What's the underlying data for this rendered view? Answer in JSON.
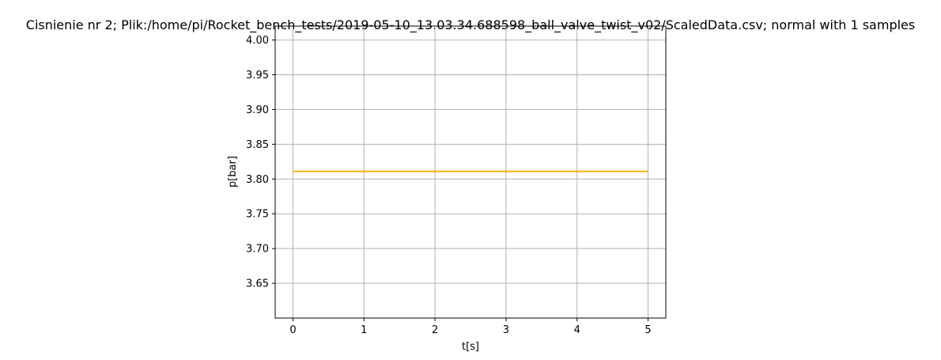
{
  "chart_data": {
    "type": "line",
    "title": "Cisnienie nr 2; Plik:/home/pi/Rocket_bench_tests/2019-05-10_13.03.34.688598_ball_valve_twist_v02/ScaledData.csv; normal with 1 samples",
    "xlabel": "t[s]",
    "ylabel": "p[bar]",
    "xlim": [
      -0.25,
      5.25
    ],
    "ylim": [
      3.6,
      4.02
    ],
    "x_ticks": [
      0,
      1,
      2,
      3,
      4,
      5
    ],
    "x_tick_labels": [
      "0",
      "1",
      "2",
      "3",
      "4",
      "5"
    ],
    "y_ticks": [
      3.65,
      3.7,
      3.75,
      3.8,
      3.85,
      3.9,
      3.95,
      4.0
    ],
    "y_tick_labels": [
      "3.65",
      "3.70",
      "3.75",
      "3.80",
      "3.85",
      "3.90",
      "3.95",
      "4.00"
    ],
    "grid": true,
    "series": [
      {
        "color": "#ffa500",
        "x": [
          0,
          5
        ],
        "y": [
          3.811,
          3.811
        ]
      }
    ]
  },
  "colors": {
    "grid": "#b0b0b0",
    "axes": "#000000",
    "background": "#ffffff"
  }
}
